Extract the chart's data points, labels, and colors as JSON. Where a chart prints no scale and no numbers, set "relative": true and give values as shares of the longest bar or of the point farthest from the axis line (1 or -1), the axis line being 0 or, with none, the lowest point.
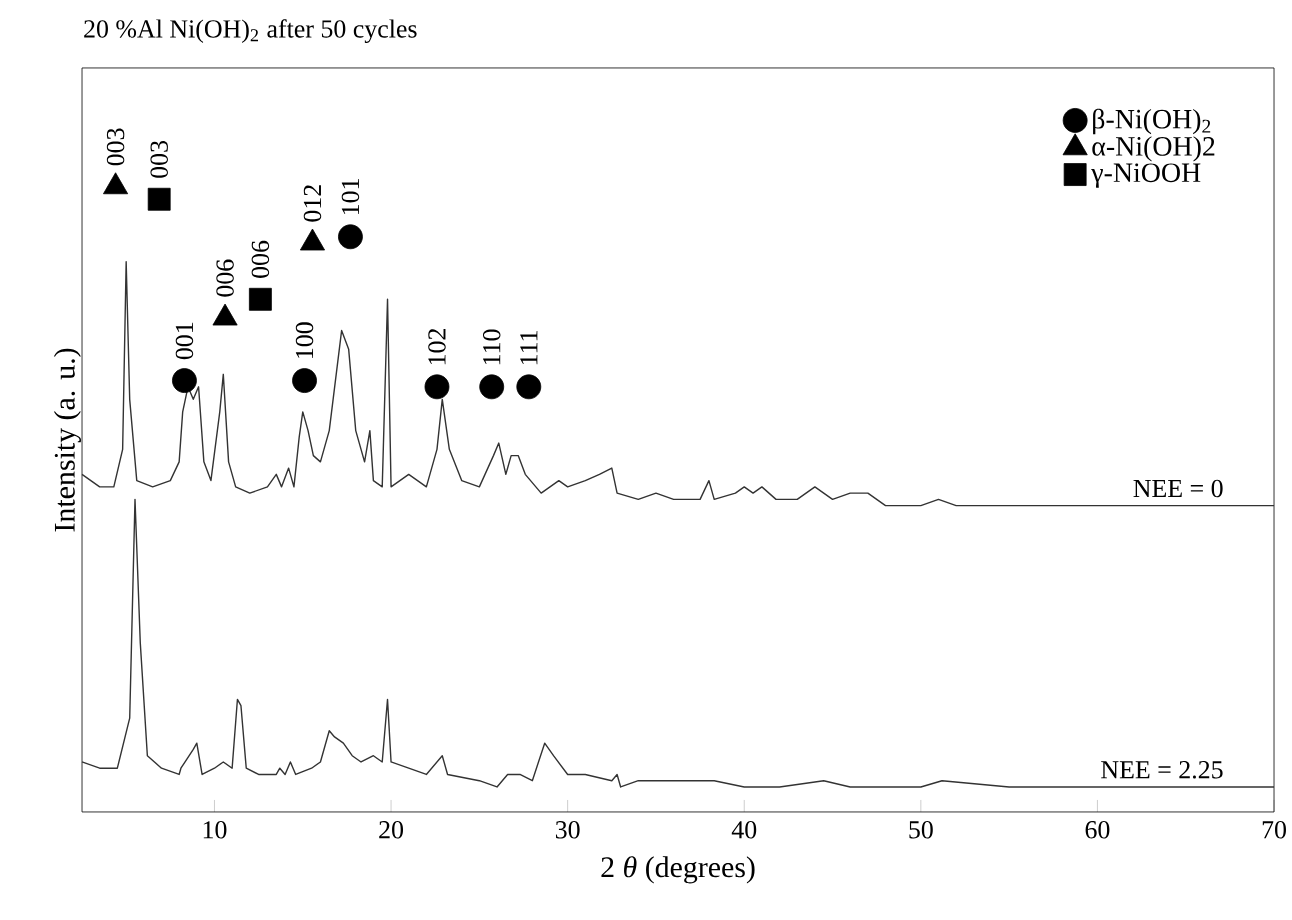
{
  "chart_data": {
    "type": "line",
    "title": "20 %Al Ni(OH)$_{2}$ after 50 cycles",
    "xlabel": "2 *θ* (degrees)",
    "ylabel": "Intensity (a. u.)",
    "relative": true,
    "xlim": [
      2.5,
      70
    ],
    "xticks": [
      10,
      20,
      30,
      40,
      50,
      60,
      70
    ],
    "grid": false,
    "legend": "top right",
    "series": [
      {
        "name": "NEE = 0",
        "marker": "none",
        "color": "#333333",
        "x": [
          2.5,
          3.5,
          4.3,
          4.8,
          5.0,
          5.2,
          5.6,
          6.5,
          7.5,
          8.0,
          8.2,
          8.5,
          8.8,
          9.1,
          9.4,
          9.8,
          10.3,
          10.5,
          10.8,
          11.2,
          12,
          13,
          13.5,
          13.8,
          14.2,
          14.5,
          14.8,
          15.0,
          15.3,
          15.6,
          16,
          16.5,
          17.2,
          17.6,
          18.0,
          18.5,
          18.8,
          19.0,
          19.5,
          19.8,
          20.0,
          20.5,
          21,
          22,
          22.6,
          22.9,
          23.3,
          24,
          25,
          25.8,
          26.1,
          26.5,
          26.8,
          27.2,
          27.6,
          28.5,
          29.5,
          30,
          31,
          31.8,
          32.5,
          32.8,
          34,
          35,
          36,
          37.5,
          38,
          38.3,
          39.5,
          40,
          40.5,
          41,
          41.8,
          43,
          44,
          45,
          46,
          47,
          48,
          50,
          51,
          52,
          53,
          55,
          60,
          65,
          70
        ],
        "values": [
          0.54,
          0.52,
          0.52,
          0.58,
          0.88,
          0.66,
          0.53,
          0.52,
          0.53,
          0.56,
          0.64,
          0.68,
          0.66,
          0.68,
          0.56,
          0.53,
          0.64,
          0.7,
          0.56,
          0.52,
          0.51,
          0.52,
          0.54,
          0.52,
          0.55,
          0.52,
          0.6,
          0.64,
          0.61,
          0.57,
          0.56,
          0.61,
          0.77,
          0.74,
          0.61,
          0.56,
          0.61,
          0.53,
          0.52,
          0.82,
          0.52,
          0.53,
          0.54,
          0.52,
          0.58,
          0.66,
          0.58,
          0.53,
          0.52,
          0.57,
          0.59,
          0.54,
          0.57,
          0.57,
          0.54,
          0.51,
          0.53,
          0.52,
          0.53,
          0.54,
          0.55,
          0.51,
          0.5,
          0.51,
          0.5,
          0.5,
          0.53,
          0.5,
          0.51,
          0.52,
          0.51,
          0.52,
          0.5,
          0.5,
          0.52,
          0.5,
          0.51,
          0.51,
          0.49,
          0.49,
          0.5,
          0.49,
          0.49,
          0.49,
          0.49,
          0.49,
          0.49
        ]
      },
      {
        "name": "NEE = 2.25",
        "marker": "none",
        "color": "#333333",
        "x": [
          2.5,
          3.5,
          4.5,
          5.2,
          5.5,
          5.8,
          6.2,
          7,
          8,
          8.1,
          8.8,
          9.0,
          9.3,
          10,
          10.5,
          11.0,
          11.3,
          11.5,
          11.8,
          12.5,
          13.5,
          13.7,
          14,
          14.3,
          14.6,
          15.5,
          16,
          16.5,
          16.8,
          17.3,
          17.8,
          18.3,
          19,
          19.5,
          19.8,
          20,
          21,
          22,
          22.9,
          23.2,
          25,
          26,
          26.6,
          27.3,
          28,
          28.7,
          29.2,
          30,
          31,
          32.5,
          32.8,
          33,
          34,
          35,
          36.5,
          38.3,
          40,
          42,
          44.5,
          46,
          48,
          50,
          51.2,
          55,
          60,
          65,
          70
        ],
        "values": [
          0.08,
          0.07,
          0.07,
          0.15,
          0.5,
          0.27,
          0.09,
          0.07,
          0.06,
          0.07,
          0.1,
          0.11,
          0.06,
          0.07,
          0.08,
          0.07,
          0.18,
          0.17,
          0.07,
          0.06,
          0.06,
          0.07,
          0.06,
          0.08,
          0.06,
          0.07,
          0.08,
          0.13,
          0.12,
          0.11,
          0.09,
          0.08,
          0.09,
          0.08,
          0.18,
          0.08,
          0.07,
          0.06,
          0.09,
          0.06,
          0.05,
          0.04,
          0.06,
          0.06,
          0.05,
          0.11,
          0.09,
          0.06,
          0.06,
          0.05,
          0.06,
          0.04,
          0.05,
          0.05,
          0.05,
          0.05,
          0.04,
          0.04,
          0.05,
          0.04,
          0.04,
          0.04,
          0.05,
          0.04,
          0.04,
          0.04,
          0.04
        ]
      },
      {
        "name": "β-Ni(OH)$_{2}$",
        "type": "scatter",
        "marker": "circle",
        "color": "#000000",
        "x": [
          8.3,
          15.1,
          17.7,
          22.6,
          25.7,
          27.8
        ],
        "values": [
          0.69,
          0.69,
          0.92,
          0.68,
          0.68,
          0.68
        ]
      },
      {
        "name": "α-Ni(OH)2",
        "type": "scatter",
        "marker": "triangle",
        "color": "#000000",
        "x": [
          4.4,
          10.6,
          15.55
        ],
        "values": [
          1,
          0.79,
          0.91
        ]
      },
      {
        "name": "γ-NiOOH",
        "type": "scatter",
        "marker": "square",
        "color": "#000000",
        "x": [
          6.87,
          12.6
        ],
        "values": [
          0.98,
          0.82
        ]
      }
    ],
    "annotations": [
      {
        "text": "001",
        "x": 8.3,
        "y": 0.69
      },
      {
        "text": "100",
        "x": 15.1,
        "y": 0.69
      },
      {
        "text": "101",
        "x": 17.7,
        "y": 0.92
      },
      {
        "text": "102",
        "x": 22.6,
        "y": 0.68
      },
      {
        "text": "110",
        "x": 25.7,
        "y": 0.68
      },
      {
        "text": "111",
        "x": 27.8,
        "y": 0.68
      },
      {
        "text": "003",
        "x": 4.4,
        "y": 1
      },
      {
        "text": "006",
        "x": 10.6,
        "y": 0.79
      },
      {
        "text": "012",
        "x": 15.55,
        "y": 0.91
      },
      {
        "text": "003",
        "x": 6.87,
        "y": 0.98
      },
      {
        "text": "006",
        "x": 12.6,
        "y": 0.82
      }
    ]
  }
}
